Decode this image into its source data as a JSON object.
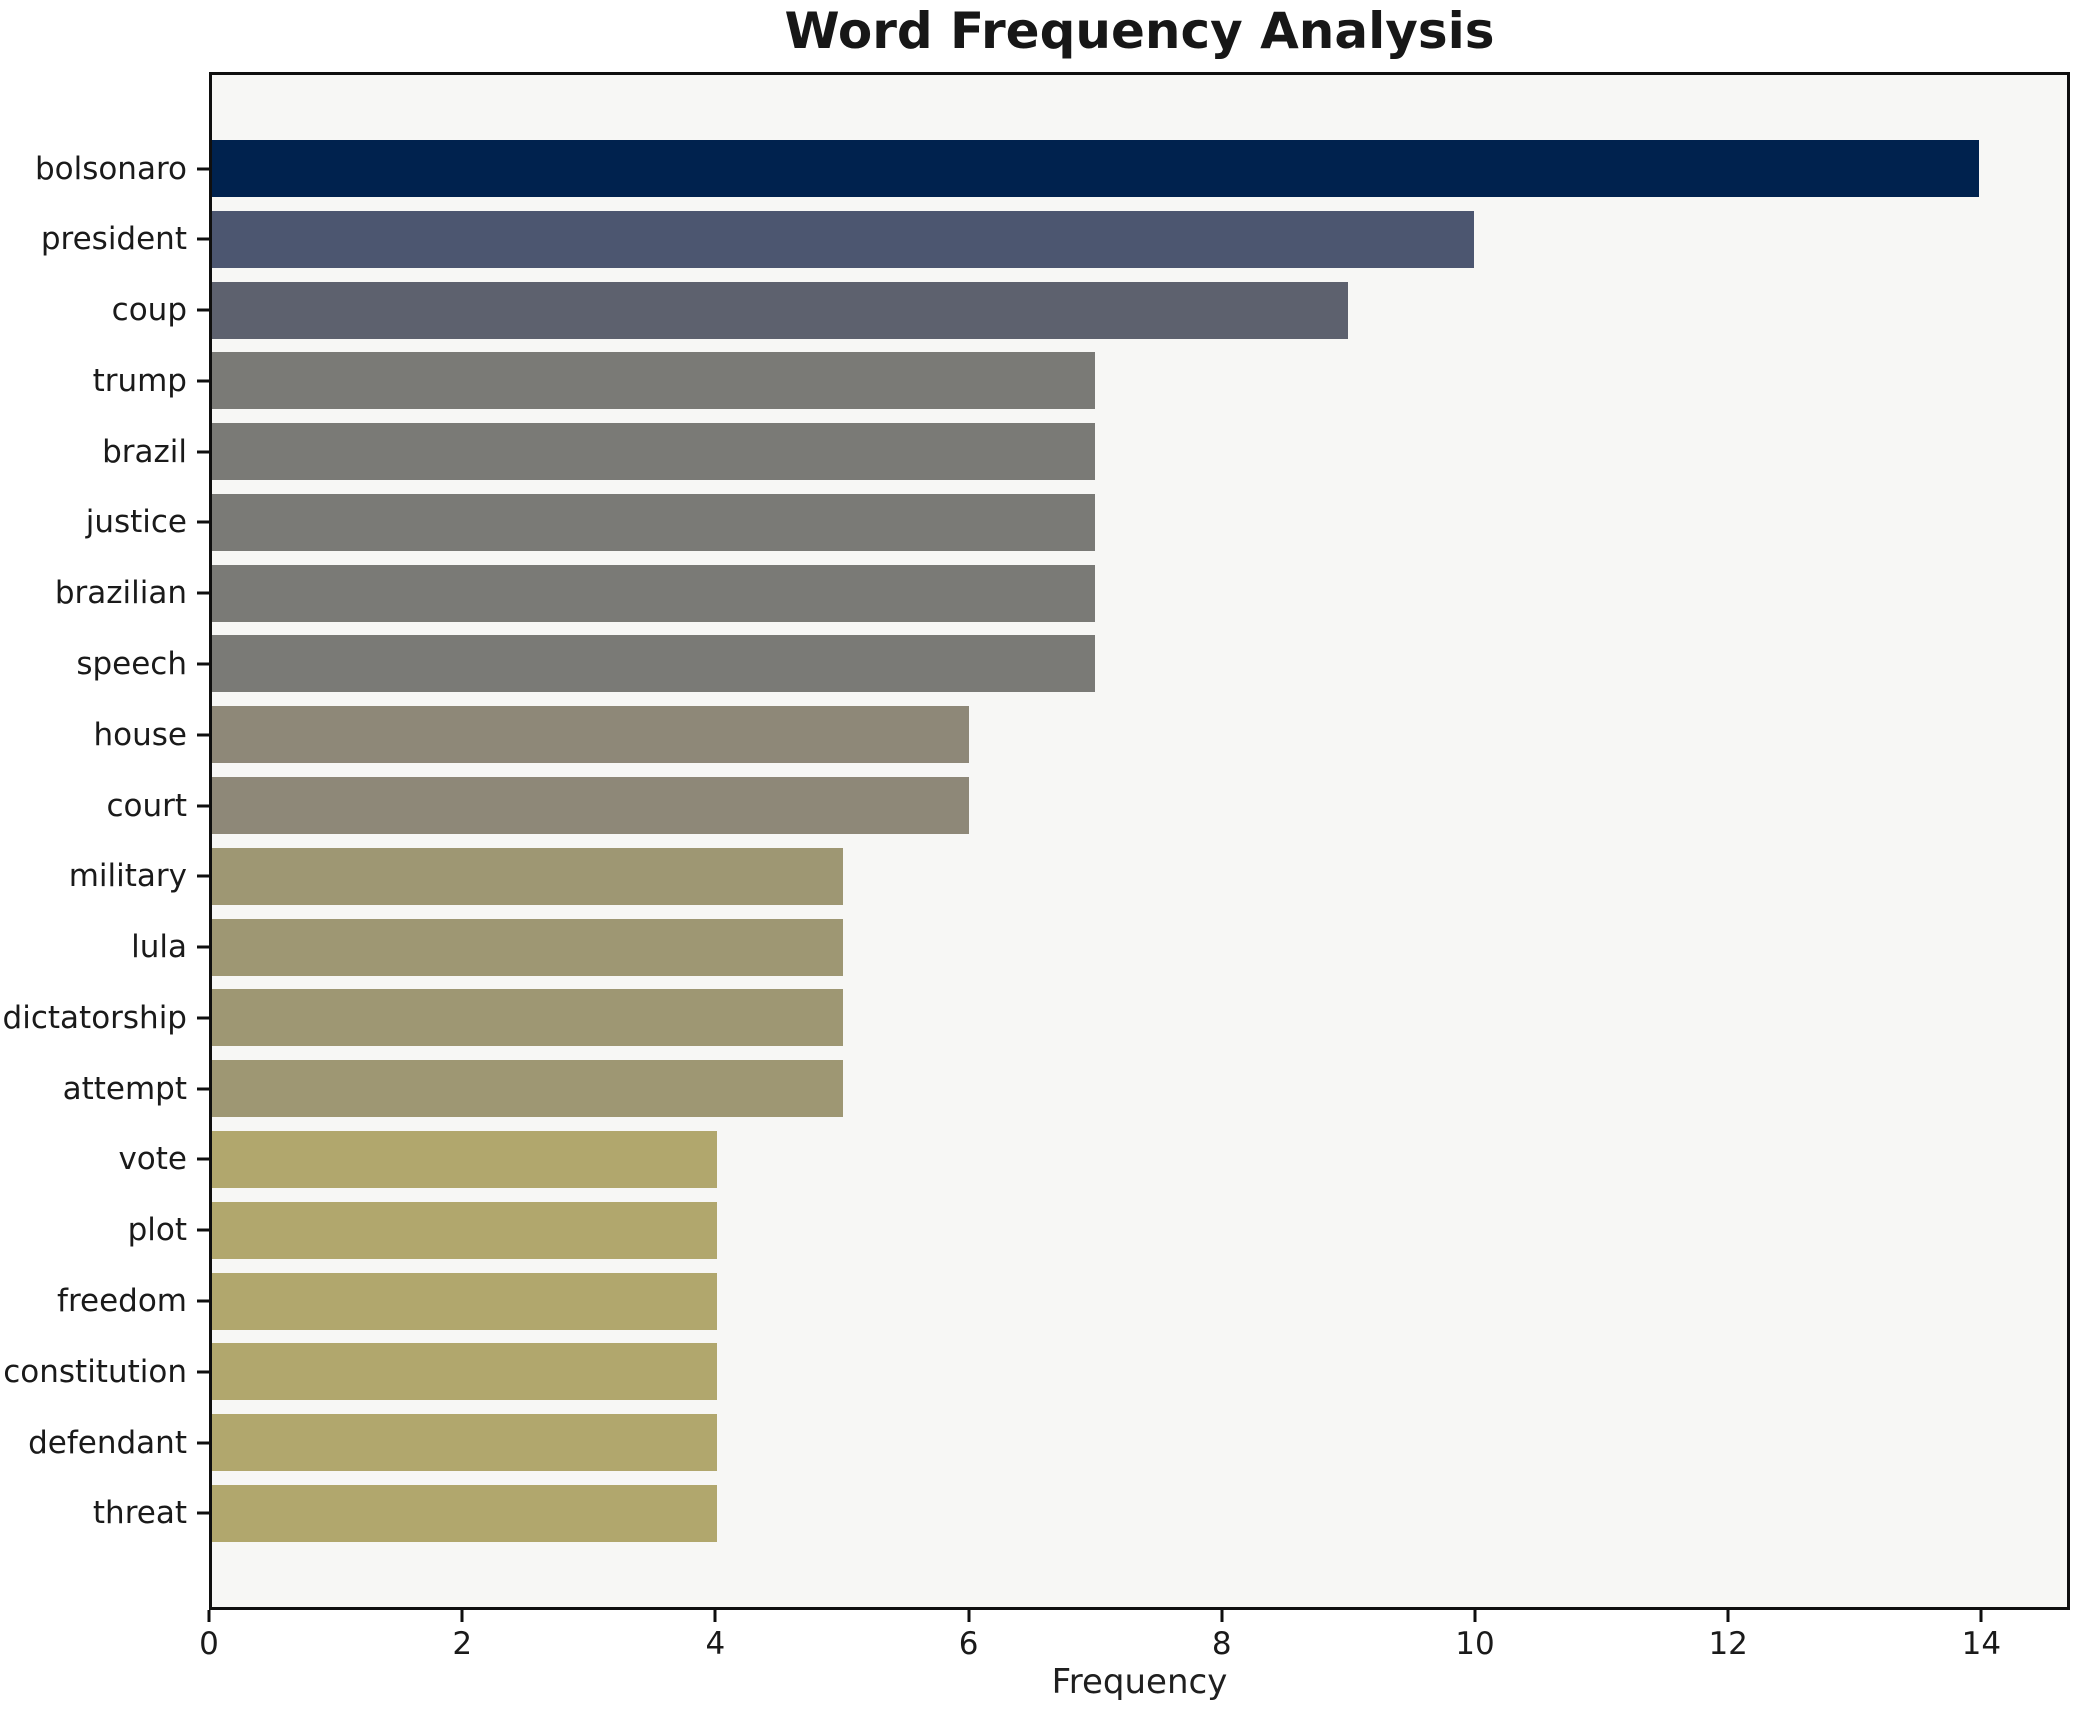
{
  "chart_data": {
    "type": "bar",
    "orientation": "horizontal",
    "title": "Word Frequency Analysis",
    "xlabel": "Frequency",
    "ylabel": "",
    "categories": [
      "bolsonaro",
      "president",
      "coup",
      "trump",
      "brazil",
      "justice",
      "brazilian",
      "speech",
      "house",
      "court",
      "military",
      "lula",
      "dictatorship",
      "attempt",
      "vote",
      "plot",
      "freedom",
      "constitution",
      "defendant",
      "threat"
    ],
    "values": [
      14,
      10,
      9,
      7,
      7,
      7,
      7,
      7,
      6,
      6,
      5,
      5,
      5,
      5,
      4,
      4,
      4,
      4,
      4,
      4
    ],
    "bar_colors": [
      "#00224e",
      "#4c5670",
      "#5d616e",
      "#7a7a76",
      "#7a7a76",
      "#7a7a76",
      "#7a7a76",
      "#7a7a76",
      "#8e8878",
      "#8e8878",
      "#9e9773",
      "#9e9773",
      "#9e9773",
      "#9e9773",
      "#b1a76d",
      "#b1a76d",
      "#b1a76d",
      "#b1a76d",
      "#b1a76d",
      "#b1a76d"
    ],
    "xlim": [
      0,
      14.7
    ],
    "xticks": [
      0,
      2,
      4,
      6,
      8,
      10,
      12,
      14
    ],
    "grid": false,
    "legend": false,
    "plot_background": "#f7f7f5",
    "figure_background": "#ffffff",
    "spine_color": "#0f0f0f"
  }
}
